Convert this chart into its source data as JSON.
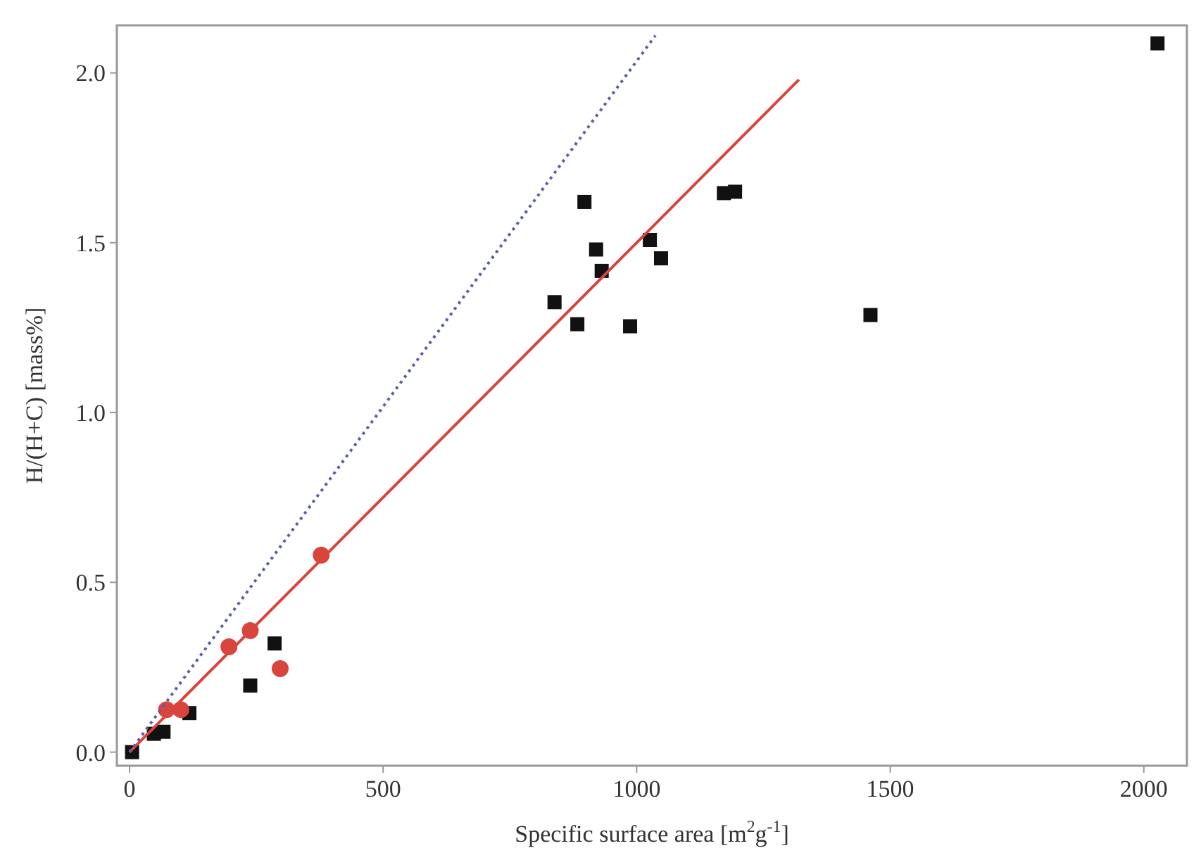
{
  "chart_data": {
    "type": "scatter",
    "xlabel": "Specific surface area [m$^{2}$g$^{-1}$]",
    "ylabel": "H/(H+C) [mass%]",
    "xlim": [
      -25,
      2085
    ],
    "ylim": [
      -0.04,
      2.14
    ],
    "xticks": [
      0,
      500,
      1000,
      1500,
      2000
    ],
    "yticks": [
      {
        "value": 0,
        "label": "0.0"
      },
      {
        "value": 0.5,
        "label": "0.5"
      },
      {
        "value": 1,
        "label": "1.0"
      },
      {
        "value": 1.5,
        "label": "1.5"
      },
      {
        "value": 2,
        "label": "2.0"
      }
    ],
    "grid": false,
    "series": [
      {
        "marker": "square",
        "color": "#111111",
        "x": [
          5,
          48,
          67,
          118,
          238,
          286,
          838,
          883,
          897,
          920,
          931,
          987,
          1026,
          1048,
          1172,
          1194,
          1461,
          2027
        ],
        "values": [
          0,
          0.054,
          0.06,
          0.115,
          0.196,
          0.32,
          1.325,
          1.26,
          1.62,
          1.48,
          1.417,
          1.254,
          1.508,
          1.454,
          1.646,
          1.65,
          1.287,
          2.087
        ]
      },
      {
        "marker": "circle",
        "color": "#d9453c",
        "x": [
          73,
          101,
          196,
          238,
          297,
          378
        ],
        "values": [
          0.125,
          0.125,
          0.31,
          0.358,
          0.246,
          0.58
        ]
      },
      {
        "type": "line",
        "marker": "none",
        "line_style": "solid",
        "color": "#d9453c",
        "x": [
          0,
          1320
        ],
        "values": [
          0,
          1.98
        ]
      },
      {
        "type": "line",
        "marker": "none",
        "line_style": "dotted",
        "color": "#5b5fa8",
        "x": [
          0,
          1037
        ],
        "values": [
          0,
          2.11
        ]
      }
    ]
  }
}
